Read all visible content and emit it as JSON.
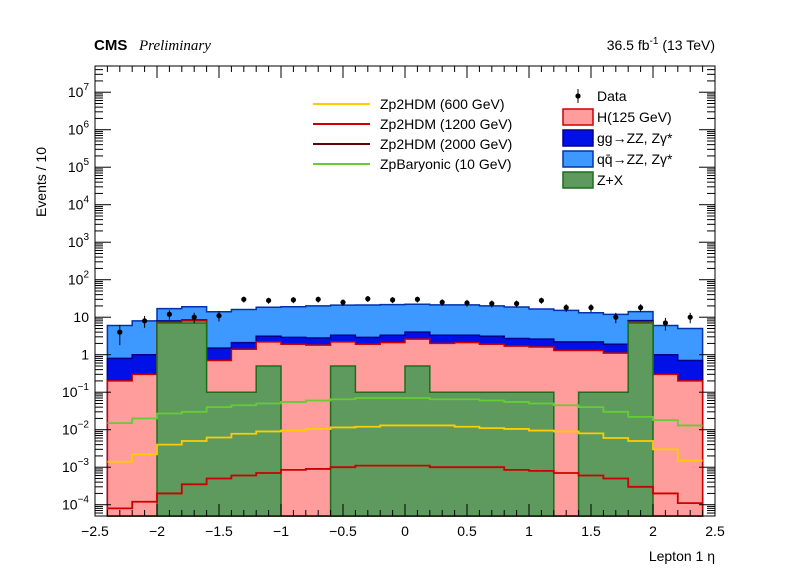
{
  "header": {
    "experiment": "CMS",
    "status": "Preliminary",
    "lumi": "36.5 fb",
    "lumi_sup": "-1",
    "energy": "(13 TeV)"
  },
  "chart_data": {
    "type": "histogram",
    "ylabel": "Events / 10",
    "xlabel": "Lepton 1 η",
    "yscale": "log",
    "xlim": [
      -2.5,
      2.5
    ],
    "ylim": [
      5e-05,
      50000000
    ],
    "x_ticks": [
      "−2.5",
      "−2",
      "−1.5",
      "−1",
      "−0.5",
      "0",
      "0.5",
      "1",
      "1.5",
      "2",
      "2.5"
    ],
    "x_tick_values": [
      -2.5,
      -2,
      -1.5,
      -1,
      -0.5,
      0,
      0.5,
      1,
      1.5,
      2,
      2.5
    ],
    "y_ticks": [
      {
        "base": "10",
        "exp": "−4",
        "value": 0.0001
      },
      {
        "base": "10",
        "exp": "−3",
        "value": 0.001
      },
      {
        "base": "10",
        "exp": "−2",
        "value": 0.01
      },
      {
        "base": "10",
        "exp": "−1",
        "value": 0.1
      },
      {
        "base": "1",
        "exp": "",
        "value": 1
      },
      {
        "base": "10",
        "exp": "",
        "value": 10
      },
      {
        "base": "10",
        "exp": "2",
        "value": 100
      },
      {
        "base": "10",
        "exp": "3",
        "value": 1000
      },
      {
        "base": "10",
        "exp": "4",
        "value": 10000
      },
      {
        "base": "10",
        "exp": "5",
        "value": 100000
      },
      {
        "base": "10",
        "exp": "6",
        "value": 1000000
      },
      {
        "base": "10",
        "exp": "7",
        "value": 10000000
      }
    ],
    "bin_edges": [
      -2.4,
      -2.2,
      -2.0,
      -1.8,
      -1.6,
      -1.4,
      -1.2,
      -1.0,
      -0.8,
      -0.6,
      -0.4,
      -0.2,
      0.0,
      0.2,
      0.4,
      0.6,
      0.8,
      1.0,
      1.2,
      1.4,
      1.6,
      1.8,
      2.0,
      2.2,
      2.4
    ],
    "stack": [
      {
        "name": "Z+X",
        "color": "#5e9a5e",
        "edge": "#1c6e1c",
        "values": [
          5e-05,
          5e-05,
          7,
          7,
          0.1,
          0.1,
          0.5,
          5e-05,
          5e-05,
          0.5,
          0.1,
          0.1,
          0.5,
          0.1,
          0.1,
          0.1,
          0.1,
          0.1,
          5e-05,
          0.1,
          0.1,
          7,
          5e-05,
          5e-05
        ]
      },
      {
        "name": "H(125 GeV)",
        "color": "#ff9c9c",
        "edge": "#cc0000",
        "values": [
          0.2,
          0.3,
          0.4,
          1.0,
          0.6,
          1.3,
          1.7,
          1.9,
          1.8,
          1.7,
          1.8,
          2.0,
          2.1,
          1.9,
          2.0,
          1.8,
          1.6,
          1.5,
          1.3,
          1.2,
          1.0,
          0.5,
          0.3,
          0.2
        ]
      },
      {
        "name": "gg→ZZ, Zγ*",
        "color": "#0010e6",
        "edge": "#000088",
        "values": [
          0.6,
          0.7,
          0.6,
          0.4,
          0.8,
          0.7,
          0.9,
          1.0,
          1.0,
          1.1,
          1.0,
          1.2,
          1.4,
          1.3,
          1.2,
          1.2,
          1.0,
          1.0,
          0.9,
          0.9,
          0.8,
          0.6,
          0.7,
          0.5
        ]
      },
      {
        "name": "qq̄→ZZ, Zγ*",
        "color": "#3d99ff",
        "edge": "#0033aa",
        "values": [
          5.2,
          7.0,
          9.0,
          10.6,
          12.5,
          14.0,
          15.4,
          16.1,
          17.2,
          17.7,
          18.2,
          18.3,
          18.2,
          18.0,
          18.1,
          17.0,
          16.0,
          14.0,
          13.0,
          11.0,
          10.0,
          6.0,
          5.0,
          4.3
        ]
      }
    ],
    "signals": [
      {
        "name": "Zp2HDM (600 GeV)",
        "color": "#ffcc00",
        "values": [
          0.0014,
          0.0022,
          0.004,
          0.005,
          0.0062,
          0.0078,
          0.009,
          0.0095,
          0.0105,
          0.0115,
          0.012,
          0.013,
          0.013,
          0.013,
          0.012,
          0.011,
          0.0105,
          0.0095,
          0.009,
          0.008,
          0.006,
          0.005,
          0.003,
          0.0015
        ]
      },
      {
        "name": "Zp2HDM (1200 GeV)",
        "color": "#cc0000",
        "values": [
          8e-05,
          0.00012,
          0.0002,
          0.00035,
          0.0005,
          0.0006,
          0.0007,
          0.00085,
          0.0009,
          0.001,
          0.0011,
          0.0011,
          0.0011,
          0.001,
          0.001,
          0.001,
          0.00085,
          0.0008,
          0.0007,
          0.0006,
          0.0005,
          0.0003,
          0.0002,
          0.00011
        ]
      },
      {
        "name": "Zp2HDM (2000 GeV)",
        "color": "#660000",
        "values": []
      },
      {
        "name": "ZpBaryonic (10 GeV)",
        "color": "#66cc33",
        "values": [
          0.015,
          0.02,
          0.027,
          0.03,
          0.04,
          0.045,
          0.05,
          0.055,
          0.06,
          0.065,
          0.07,
          0.07,
          0.07,
          0.065,
          0.065,
          0.06,
          0.055,
          0.05,
          0.045,
          0.04,
          0.03,
          0.022,
          0.018,
          0.013
        ]
      }
    ],
    "data": {
      "name": "Data",
      "x": [
        -2.3,
        -2.1,
        -1.9,
        -1.7,
        -1.5,
        -1.3,
        -1.1,
        -0.9,
        -0.7,
        -0.5,
        -0.3,
        -0.1,
        0.1,
        0.3,
        0.5,
        0.7,
        0.9,
        1.1,
        1.3,
        1.5,
        1.7,
        1.9,
        2.1,
        2.3
      ],
      "y": [
        4,
        8,
        12,
        10,
        11,
        30,
        28,
        29,
        30,
        25,
        31,
        29,
        30,
        25,
        24,
        23,
        23,
        28,
        18,
        18,
        10,
        18,
        7,
        10
      ],
      "err": [
        2.2,
        2.8,
        3.4,
        3.1,
        3.3,
        5.4,
        5.2,
        5.3,
        5.4,
        5.0,
        5.5,
        5.3,
        5.4,
        5.0,
        4.9,
        4.8,
        4.8,
        5.2,
        4.2,
        4.2,
        3.1,
        4.2,
        2.6,
        3.1
      ]
    },
    "legend_left": [
      "Zp2HDM (600 GeV)",
      "Zp2HDM (1200 GeV)",
      "Zp2HDM (2000 GeV)",
      "ZpBaryonic (10 GeV)"
    ],
    "legend_right": [
      "Data",
      "H(125 GeV)",
      "gg→ZZ, Zγ*",
      "qq̄→ZZ, Zγ*",
      "Z+X"
    ]
  }
}
